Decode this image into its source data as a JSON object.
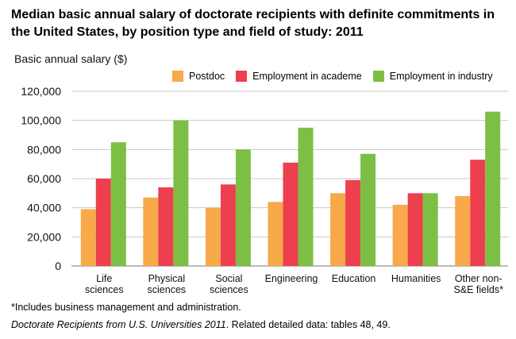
{
  "title": "Median basic annual salary of doctorate recipients with definite commitments in the United States, by position type and field of study: 2011",
  "ylabel": "Basic annual salary ($)",
  "footnote": "*Includes business management and administration.",
  "source_italic": "Doctorate Recipients from U.S. Universities 2011",
  "source_rest": ". Related detailed data: tables 48, 49.",
  "colors": {
    "Postdoc": "#f8a94a",
    "Employment in academe": "#ee3f4e",
    "Employment in industry": "#7dbf45",
    "grid": "#c9c9c9",
    "axis": "#777777"
  },
  "chart_data": {
    "type": "bar",
    "title": "Median basic annual salary of doctorate recipients with definite commitments in the United States, by position type and field of study: 2011",
    "ylabel": "Basic annual salary ($)",
    "xlabel": "",
    "ylim": [
      0,
      120000
    ],
    "yticks": [
      "0",
      "20,000",
      "40,000",
      "60,000",
      "80,000",
      "100,000",
      "120,000"
    ],
    "grid": true,
    "legend_position": "top-right",
    "categories": [
      [
        "Life",
        "sciences"
      ],
      [
        "Physical",
        "sciences"
      ],
      [
        "Social",
        "sciences"
      ],
      [
        "Engineering"
      ],
      [
        "Education"
      ],
      [
        "Humanities"
      ],
      [
        "Other non-",
        "S&E fields*"
      ]
    ],
    "series": [
      {
        "name": "Postdoc",
        "values": [
          39000,
          47000,
          40000,
          44000,
          50000,
          42000,
          48000
        ]
      },
      {
        "name": "Employment in academe",
        "values": [
          60000,
          54000,
          56000,
          71000,
          59000,
          50000,
          73000
        ]
      },
      {
        "name": "Employment in industry",
        "values": [
          85000,
          100000,
          80000,
          95000,
          77000,
          50000,
          106000
        ]
      }
    ]
  }
}
